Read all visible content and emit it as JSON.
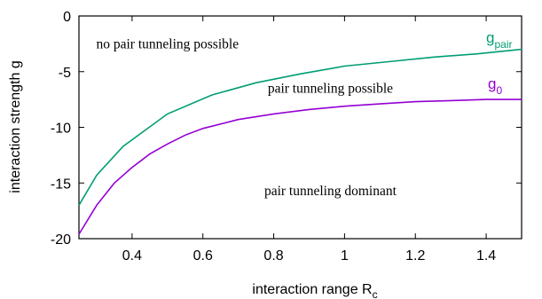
{
  "chart_data": {
    "type": "line",
    "xlabel": "interaction range R",
    "xlabel_sub": "c",
    "ylabel": "interaction strength g",
    "xlim": [
      0.25,
      1.5
    ],
    "ylim": [
      -20,
      0
    ],
    "xticks": [
      0.4,
      0.6,
      0.8,
      1.0,
      1.2,
      1.4
    ],
    "xtick_labels": [
      "0.4",
      "0.6",
      "0.8",
      "1",
      "1.2",
      "1.4"
    ],
    "yticks": [
      0,
      -5,
      -10,
      -15,
      -20
    ],
    "ytick_labels": [
      "0",
      "-5",
      "-10",
      "-15",
      "-20"
    ],
    "grid": false,
    "series": [
      {
        "name": "g",
        "name_sub": "pair",
        "color": "#009e73",
        "x": [
          0.25,
          0.3,
          0.375,
          0.5,
          0.625,
          0.75,
          0.875,
          1.0,
          1.125,
          1.25,
          1.375,
          1.5
        ],
        "y": [
          -17.0,
          -14.3,
          -11.7,
          -8.8,
          -7.1,
          -6.0,
          -5.2,
          -4.5,
          -4.1,
          -3.7,
          -3.4,
          -3.0
        ]
      },
      {
        "name": "g",
        "name_sub": "0",
        "color": "#9400d3",
        "x": [
          0.25,
          0.3,
          0.35,
          0.4,
          0.45,
          0.5,
          0.55,
          0.6,
          0.7,
          0.8,
          0.9,
          1.0,
          1.1,
          1.2,
          1.3,
          1.4,
          1.5
        ],
        "y": [
          -19.6,
          -17.0,
          -15.0,
          -13.6,
          -12.4,
          -11.5,
          -10.7,
          -10.1,
          -9.3,
          -8.8,
          -8.4,
          -8.1,
          -7.9,
          -7.7,
          -7.6,
          -7.5,
          -7.5
        ]
      }
    ],
    "annotations": [
      {
        "text": "no pair tunneling possible",
        "x": 0.5,
        "y": -2.9
      },
      {
        "text": "pair tunneling possible",
        "x": 0.96,
        "y": -6.9
      },
      {
        "text": "pair tunneling dominant",
        "x": 0.96,
        "y": -16.1
      }
    ]
  }
}
